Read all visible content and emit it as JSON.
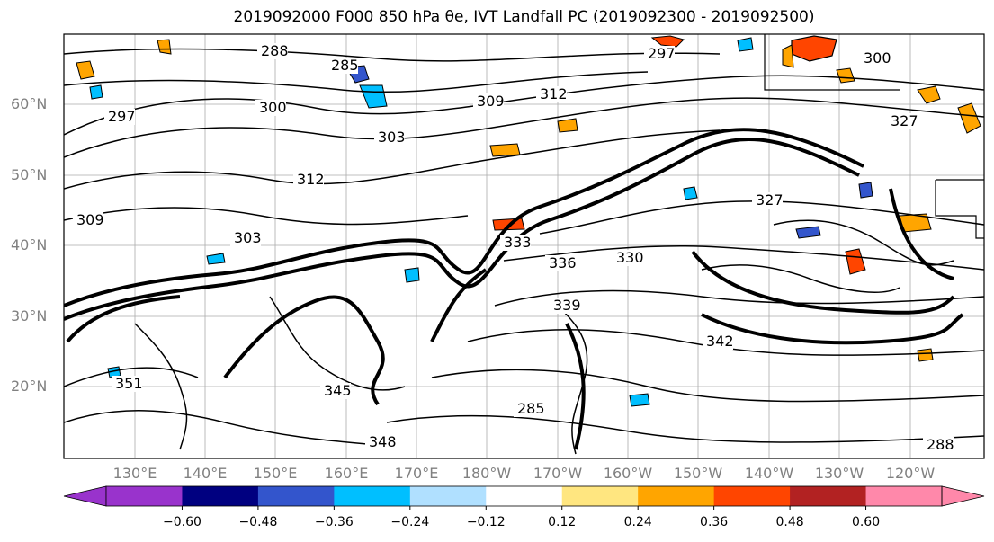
{
  "title": "2019092000 F000 850 hPa θe, IVT Landfall PC (2019092300 - 2019092500)",
  "lat_labels": [
    "60°N",
    "50°N",
    "40°N",
    "30°N",
    "20°N"
  ],
  "lon_labels": [
    "130°E",
    "140°E",
    "150°E",
    "160°E",
    "170°E",
    "180°W",
    "170°W",
    "160°W",
    "150°W",
    "140°W",
    "130°W",
    "120°W"
  ],
  "contour_labels": [
    "285",
    "288",
    "297",
    "300",
    "303",
    "309",
    "312",
    "327",
    "333",
    "336",
    "330",
    "339",
    "342",
    "345",
    "348",
    "351"
  ],
  "colorbar": {
    "colors": [
      "#9933cc",
      "#000080",
      "#3355cc",
      "#00bfff",
      "#b0e0ff",
      "#ffffff",
      "#ffe680",
      "#ffa500",
      "#ff4500",
      "#b22222",
      "#ff88aa"
    ],
    "tick_labels": [
      "−0.60",
      "−0.48",
      "−0.36",
      "−0.24",
      "−0.12",
      "0.12",
      "0.24",
      "0.36",
      "0.48",
      "0.60"
    ]
  },
  "colors": {
    "contour": "#000000",
    "grid": "#999999",
    "axis_label": "#808080"
  }
}
